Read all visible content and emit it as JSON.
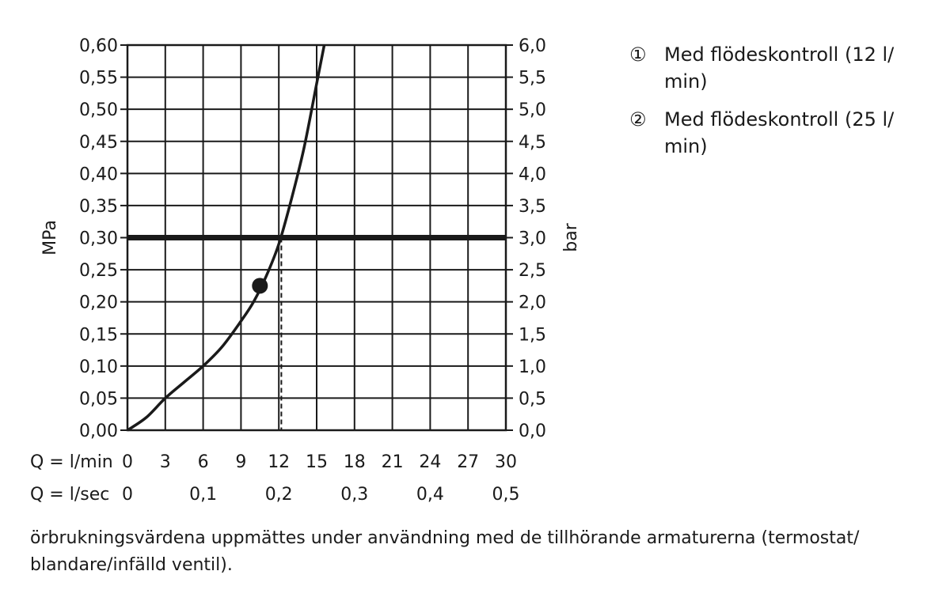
{
  "chart_data": {
    "type": "line",
    "left_axis": {
      "label": "MPa",
      "ylim": [
        0,
        0.6
      ],
      "ticks": [
        "0,00",
        "0,05",
        "0,10",
        "0,15",
        "0,20",
        "0,25",
        "0,30",
        "0,35",
        "0,40",
        "0,45",
        "0,50",
        "0,55",
        "0,60"
      ]
    },
    "right_axis": {
      "label": "bar",
      "ylim": [
        0,
        6.0
      ],
      "ticks": [
        "0,0",
        "0,5",
        "1,0",
        "1,5",
        "2,0",
        "2,5",
        "3,0",
        "3,5",
        "4,0",
        "4,5",
        "5,0",
        "5,5",
        "6,0"
      ]
    },
    "x_axis_lmin": {
      "label": "Q = l/min",
      "xlim": [
        0,
        30
      ],
      "ticks": [
        {
          "v": 0,
          "t": "0"
        },
        {
          "v": 3,
          "t": "3"
        },
        {
          "v": 6,
          "t": "6"
        },
        {
          "v": 9,
          "t": "9"
        },
        {
          "v": 12,
          "t": "12"
        },
        {
          "v": 15,
          "t": "15"
        },
        {
          "v": 18,
          "t": "18"
        },
        {
          "v": 21,
          "t": "21"
        },
        {
          "v": 24,
          "t": "24"
        },
        {
          "v": 27,
          "t": "27"
        },
        {
          "v": 30,
          "t": "30"
        }
      ]
    },
    "x_axis_lsec": {
      "label": "Q = l/sec",
      "ticks": [
        {
          "v": 0,
          "t": "0"
        },
        {
          "v": 6,
          "t": "0,1"
        },
        {
          "v": 12,
          "t": "0,2"
        },
        {
          "v": 18,
          "t": "0,3"
        },
        {
          "v": 24,
          "t": "0,4"
        },
        {
          "v": 30,
          "t": "0,5"
        }
      ]
    },
    "grid": true,
    "series": [
      {
        "values": [
          [
            0,
            0
          ],
          [
            1.5,
            0.02
          ],
          [
            3,
            0.05
          ],
          [
            4.5,
            0.075
          ],
          [
            6,
            0.1
          ],
          [
            7.5,
            0.13
          ],
          [
            9,
            0.17
          ],
          [
            10,
            0.2
          ],
          [
            11,
            0.24
          ],
          [
            12,
            0.29
          ],
          [
            13,
            0.36
          ],
          [
            14,
            0.44
          ],
          [
            15,
            0.54
          ],
          [
            15.6,
            0.6
          ]
        ]
      }
    ],
    "reference_line": {
      "y": 0.3
    },
    "dashed_marker": {
      "x": 12.2,
      "y": 0.3
    },
    "point": {
      "x": 10.5,
      "y": 0.225
    }
  },
  "legend": [
    {
      "marker": "①",
      "label": "Med flödeskontroll (12 l/ min)"
    },
    {
      "marker": "②",
      "label": "Med flödeskontroll (25 l/ min)"
    }
  ],
  "footnote": "örbrukningsvärdena uppmättes under användning med de tillhörande armaturerna (termostat/ blandare/infälld ventil)."
}
